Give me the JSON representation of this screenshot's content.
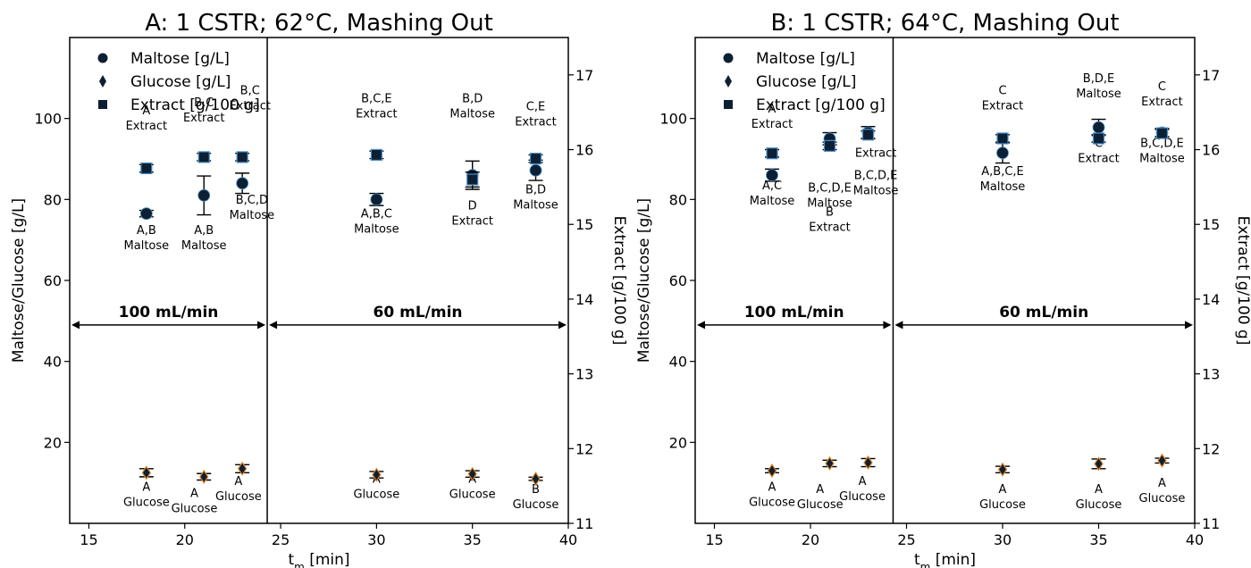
{
  "chart_data": [
    {
      "type": "scatter",
      "title": "A: 1 CSTR; 62°C, Mashing Out",
      "xlabel_main": "t",
      "xlabel_sub": "m",
      "xlabel_unit": " [min]",
      "ylabel": "Maltose/Glucose [g/L]",
      "y2label": "Extract [g/100 g]",
      "xlim": [
        14,
        40
      ],
      "ylim": [
        0,
        120
      ],
      "y2lim": [
        11,
        17.5
      ],
      "xticks": [
        15,
        20,
        25,
        30,
        35,
        40
      ],
      "yticks": [
        20,
        40,
        60,
        80,
        100
      ],
      "y2ticks": [
        11,
        12,
        13,
        14,
        15,
        16,
        17
      ],
      "legend": [
        "Maltose [g/L]",
        "Glucose [g/L]",
        "Extract [g/100 g]"
      ],
      "legend_position": "top-left",
      "series": [
        {
          "name": "Maltose [g/L]",
          "marker": "circle",
          "axis": "left",
          "x": [
            18,
            21,
            23,
            30,
            35,
            38.3
          ],
          "y": [
            76.5,
            81,
            84,
            80,
            86,
            87.2
          ],
          "err": [
            0.8,
            4.8,
            2.5,
            1.5,
            3.5,
            2.5
          ]
        },
        {
          "name": "Glucose [g/L]",
          "marker": "diamond",
          "axis": "left",
          "x": [
            18,
            21,
            23,
            30,
            35,
            38.3
          ],
          "y": [
            12.5,
            11.5,
            13.5,
            12,
            12.2,
            11
          ],
          "err": [
            1,
            0.8,
            1,
            0.8,
            0.8,
            0.4
          ]
        },
        {
          "name": "Extract [g/100 g]",
          "marker": "square",
          "axis": "right",
          "x": [
            18,
            21,
            23,
            30,
            35,
            38.3
          ],
          "y": [
            15.75,
            15.9,
            15.9,
            15.93,
            15.6,
            15.88
          ],
          "err": [
            0.05,
            0.05,
            0.05,
            0.05,
            0.1,
            0.05
          ]
        }
      ],
      "annotations": [
        {
          "x": 18,
          "y": 101,
          "lines": [
            "A",
            "Extract"
          ]
        },
        {
          "x": 21,
          "y": 103,
          "lines": [
            "B,C",
            "Extract"
          ]
        },
        {
          "x": 23.4,
          "y": 106,
          "lines": [
            "B,C",
            "Extract"
          ]
        },
        {
          "x": 30,
          "y": 104,
          "lines": [
            "B,C,E",
            "Extract"
          ]
        },
        {
          "x": 35,
          "y": 104,
          "lines": [
            "B,D",
            "Maltose"
          ]
        },
        {
          "x": 38.3,
          "y": 102,
          "lines": [
            "C,E",
            "Extract"
          ]
        },
        {
          "x": 18,
          "y": 71.5,
          "lines": [
            "A,B",
            "Maltose"
          ]
        },
        {
          "x": 21,
          "y": 71.5,
          "lines": [
            "A,B",
            "Maltose"
          ]
        },
        {
          "x": 23.5,
          "y": 79,
          "lines": [
            "B,C,D",
            "Maltose"
          ]
        },
        {
          "x": 30,
          "y": 75.5,
          "lines": [
            "A,B,C",
            "Maltose"
          ]
        },
        {
          "x": 35,
          "y": 77.5,
          "lines": [
            "D",
            "Extract"
          ]
        },
        {
          "x": 38.3,
          "y": 81.5,
          "lines": [
            "B,D",
            "Maltose"
          ]
        },
        {
          "x": 18,
          "y": 8,
          "lines": [
            "A",
            "Glucose"
          ]
        },
        {
          "x": 20.5,
          "y": 6.5,
          "lines": [
            "A",
            "Glucose"
          ]
        },
        {
          "x": 22.8,
          "y": 9.5,
          "lines": [
            "A",
            "Glucose"
          ]
        },
        {
          "x": 30,
          "y": 10,
          "lines": [
            "A",
            "Glucose"
          ]
        },
        {
          "x": 35,
          "y": 10,
          "lines": [
            "A",
            "Glucose"
          ]
        },
        {
          "x": 38.3,
          "y": 7.5,
          "lines": [
            "B",
            "Glucose"
          ]
        }
      ],
      "flow_rates": [
        {
          "label": "100 mL/min",
          "x_start": 14,
          "x_end": 24.3,
          "y": 49
        },
        {
          "label": "60 mL/min",
          "x_start": 24.3,
          "x_end": 40,
          "y": 49
        }
      ],
      "divider_x": 24.3
    },
    {
      "type": "scatter",
      "title": "B: 1 CSTR; 64°C, Mashing Out",
      "xlabel_main": "t",
      "xlabel_sub": "m",
      "xlabel_unit": " [min]",
      "ylabel": "Maltose/Glucose [g/L]",
      "y2label": "Extract [g/100 g]",
      "xlim": [
        14,
        40
      ],
      "ylim": [
        0,
        120
      ],
      "y2lim": [
        11,
        17.5
      ],
      "xticks": [
        15,
        20,
        25,
        30,
        35,
        40
      ],
      "yticks": [
        20,
        40,
        60,
        80,
        100
      ],
      "y2ticks": [
        11,
        12,
        13,
        14,
        15,
        16,
        17
      ],
      "legend": [
        "Maltose [g/L]",
        "Glucose [g/L]",
        "Extract [g/100 g]"
      ],
      "legend_position": "top-left",
      "series": [
        {
          "name": "Maltose [g/L]",
          "marker": "circle",
          "axis": "left",
          "x": [
            18,
            21,
            23,
            30,
            35,
            38.3
          ],
          "y": [
            86,
            95,
            96.5,
            91.5,
            97.8,
            96.5
          ],
          "err": [
            1.5,
            1.5,
            1.5,
            2.5,
            2,
            1
          ]
        },
        {
          "name": "Glucose [g/L]",
          "marker": "diamond",
          "axis": "left",
          "x": [
            18,
            21,
            23,
            30,
            35,
            38.3
          ],
          "y": [
            13,
            14.8,
            15,
            13.3,
            14.7,
            15.5
          ],
          "err": [
            0.5,
            0.8,
            1,
            0.8,
            1.2,
            0.6
          ]
        },
        {
          "name": "Extract [g/100 g]",
          "marker": "square",
          "axis": "right",
          "x": [
            18,
            21,
            23,
            30,
            35,
            38.3
          ],
          "y": [
            15.95,
            16.05,
            16.2,
            16.15,
            16.15,
            16.22
          ],
          "err": [
            0.05,
            0.05,
            0.05,
            0.05,
            0.05,
            0.05
          ]
        }
      ],
      "annotations": [
        {
          "x": 18,
          "y": 101.5,
          "lines": [
            "A",
            "Extract"
          ]
        },
        {
          "x": 21,
          "y": 82,
          "lines": [
            "B,C,D,E",
            "Maltose"
          ]
        },
        {
          "x": 21,
          "y": 76,
          "lines": [
            "B",
            "Extract"
          ]
        },
        {
          "x": 23.4,
          "y": 90.5,
          "lines": [
            "Extract"
          ]
        },
        {
          "x": 23.4,
          "y": 85,
          "lines": [
            "B,C,D,E",
            "Maltose"
          ]
        },
        {
          "x": 30,
          "y": 106,
          "lines": [
            "C",
            "Extract"
          ]
        },
        {
          "x": 30,
          "y": 86,
          "lines": [
            "A,B,C,E",
            "Maltose"
          ]
        },
        {
          "x": 35,
          "y": 109,
          "lines": [
            "B,D,E",
            "Maltose"
          ]
        },
        {
          "x": 35,
          "y": 93,
          "lines": [
            "C",
            "Extract"
          ]
        },
        {
          "x": 38.3,
          "y": 107,
          "lines": [
            "C",
            "Extract"
          ]
        },
        {
          "x": 38.3,
          "y": 93,
          "lines": [
            "B,C,D,E",
            "Maltose"
          ]
        },
        {
          "x": 18,
          "y": 82.5,
          "lines": [
            "A,C",
            "Maltose"
          ]
        },
        {
          "x": 18,
          "y": 8,
          "lines": [
            "A",
            "Glucose"
          ]
        },
        {
          "x": 20.5,
          "y": 7.5,
          "lines": [
            "A",
            "Glucose"
          ]
        },
        {
          "x": 22.7,
          "y": 9.5,
          "lines": [
            "A",
            "Glucose"
          ]
        },
        {
          "x": 30,
          "y": 7.5,
          "lines": [
            "A",
            "Glucose"
          ]
        },
        {
          "x": 35,
          "y": 7.5,
          "lines": [
            "A",
            "Glucose"
          ]
        },
        {
          "x": 38.3,
          "y": 9,
          "lines": [
            "A",
            "Glucose"
          ]
        }
      ],
      "flow_rates": [
        {
          "label": "100 mL/min",
          "x_start": 14,
          "x_end": 24.3,
          "y": 49
        },
        {
          "label": "60 mL/min",
          "x_start": 24.3,
          "x_end": 40,
          "y": 49
        }
      ],
      "divider_x": 24.3
    }
  ],
  "colors": {
    "marker": "#0d1f33",
    "marker_edge_glucose": "#e0882a",
    "marker_edge_extract": "#4a90c8",
    "axis": "#000000"
  }
}
